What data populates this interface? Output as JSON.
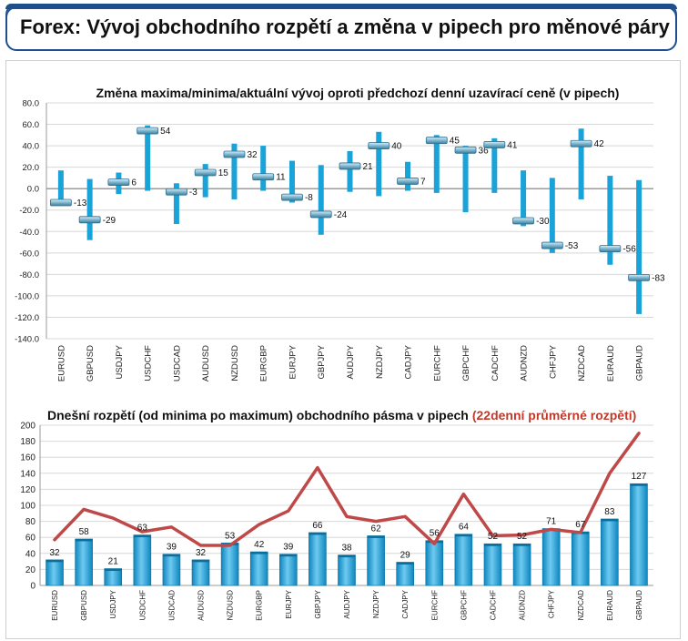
{
  "header": {
    "title": "Forex: Vývoj obchodního rozpětí a změna v pipech pro měnové páry"
  },
  "chart_data": [
    {
      "type": "bar",
      "title": "Změna maxima/minima/aktuální vývoj oproti předchozí denní uzavírací ceně (v pipech)",
      "categories": [
        "EURUSD",
        "GBPUSD",
        "USDJPY",
        "USDCHF",
        "USDCAD",
        "AUDUSD",
        "NZDUSD",
        "EURGBP",
        "EURJPY",
        "GBPJPY",
        "AUDJPY",
        "NZDJPY",
        "CADJPY",
        "EURCHF",
        "GBPCHF",
        "CADCHF",
        "AUDNZD",
        "CHFJPY",
        "NZDCAD",
        "EURAUD",
        "GBPAUD"
      ],
      "high": [
        17,
        9,
        15,
        59,
        5,
        23,
        42,
        40,
        26,
        22,
        35,
        53,
        25,
        50,
        40,
        47,
        17,
        10,
        56,
        12,
        8
      ],
      "low": [
        -13,
        -48,
        -5,
        -2,
        -33,
        -8,
        -10,
        -2,
        -13,
        -43,
        -3,
        -7,
        -2,
        -4,
        -22,
        -4,
        -35,
        -60,
        -10,
        -71,
        -117
      ],
      "current": [
        -13,
        -29,
        6,
        54,
        -3,
        15,
        32,
        11,
        -8,
        -24,
        21,
        40,
        7,
        45,
        36,
        41,
        -30,
        -53,
        42,
        -56,
        -83
      ],
      "labels": [
        "-13",
        "-29",
        "6",
        "54",
        "-3",
        "15",
        "32",
        "11",
        "-8",
        "-24",
        "21",
        "40",
        "7",
        "45",
        "36",
        "41",
        "-30",
        "-53",
        "42",
        "-56",
        "-83"
      ],
      "ylim": [
        -140,
        80
      ],
      "yticks": [
        "-140.0",
        "-120.0",
        "-100.0",
        "-80.0",
        "-60.0",
        "-40.0",
        "-20.0",
        "0.0",
        "20.0",
        "40.0",
        "60.0",
        "80.0"
      ],
      "ytick_values": [
        -140,
        -120,
        -100,
        -80,
        -60,
        -40,
        -20,
        0,
        20,
        40,
        60,
        80
      ],
      "grid": true,
      "colors": {
        "range": "#1aa3d8",
        "marker": "#7fb6cf",
        "marker_edge": "#2f6f8f"
      }
    },
    {
      "type": "bar",
      "title": "Dnešní rozpětí (od minima po maximum) obchodního pásma v pipech",
      "title_suffix": "(22denní průměrné rozpětí)",
      "categories": [
        "EURUSD",
        "GBPUSD",
        "USDJPY",
        "USDCHF",
        "USDCAD",
        "AUDUSD",
        "NZDUSD",
        "EURGBP",
        "EURJPY",
        "GBPJPY",
        "AUDJPY",
        "NZDJPY",
        "CADJPY",
        "EURCHF",
        "GBPCHF",
        "CADCHF",
        "AUDNZD",
        "CHFJPY",
        "NZDCAD",
        "EURAUD",
        "GBPAUD"
      ],
      "series": [
        {
          "values": [
            32,
            58,
            21,
            63,
            39,
            32,
            53,
            42,
            39,
            66,
            38,
            62,
            29,
            56,
            64,
            52,
            52,
            71,
            67,
            83,
            127
          ]
        },
        {
          "values": [
            57,
            95,
            84,
            67,
            73,
            50,
            50,
            76,
            93,
            147,
            86,
            80,
            86,
            52,
            114,
            62,
            63,
            70,
            66,
            140,
            190
          ]
        }
      ],
      "labels": [
        "32",
        "58",
        "21",
        "63",
        "39",
        "32",
        "53",
        "42",
        "39",
        "66",
        "38",
        "62",
        "29",
        "56",
        "64",
        "52",
        "52",
        "71",
        "67",
        "83",
        "127"
      ],
      "ylim": [
        0,
        200
      ],
      "yticks": [
        "0",
        "20",
        "40",
        "60",
        "80",
        "100",
        "120",
        "140",
        "160",
        "180",
        "200"
      ],
      "ytick_values": [
        0,
        20,
        40,
        60,
        80,
        100,
        120,
        140,
        160,
        180,
        200
      ],
      "grid": true,
      "colors": {
        "bar": "#12a0dc",
        "bar_light": "#7fd0f0",
        "bar_edge": "#0a6f9c",
        "line": "#bf4848",
        "suffix": "#c0392b"
      }
    }
  ]
}
